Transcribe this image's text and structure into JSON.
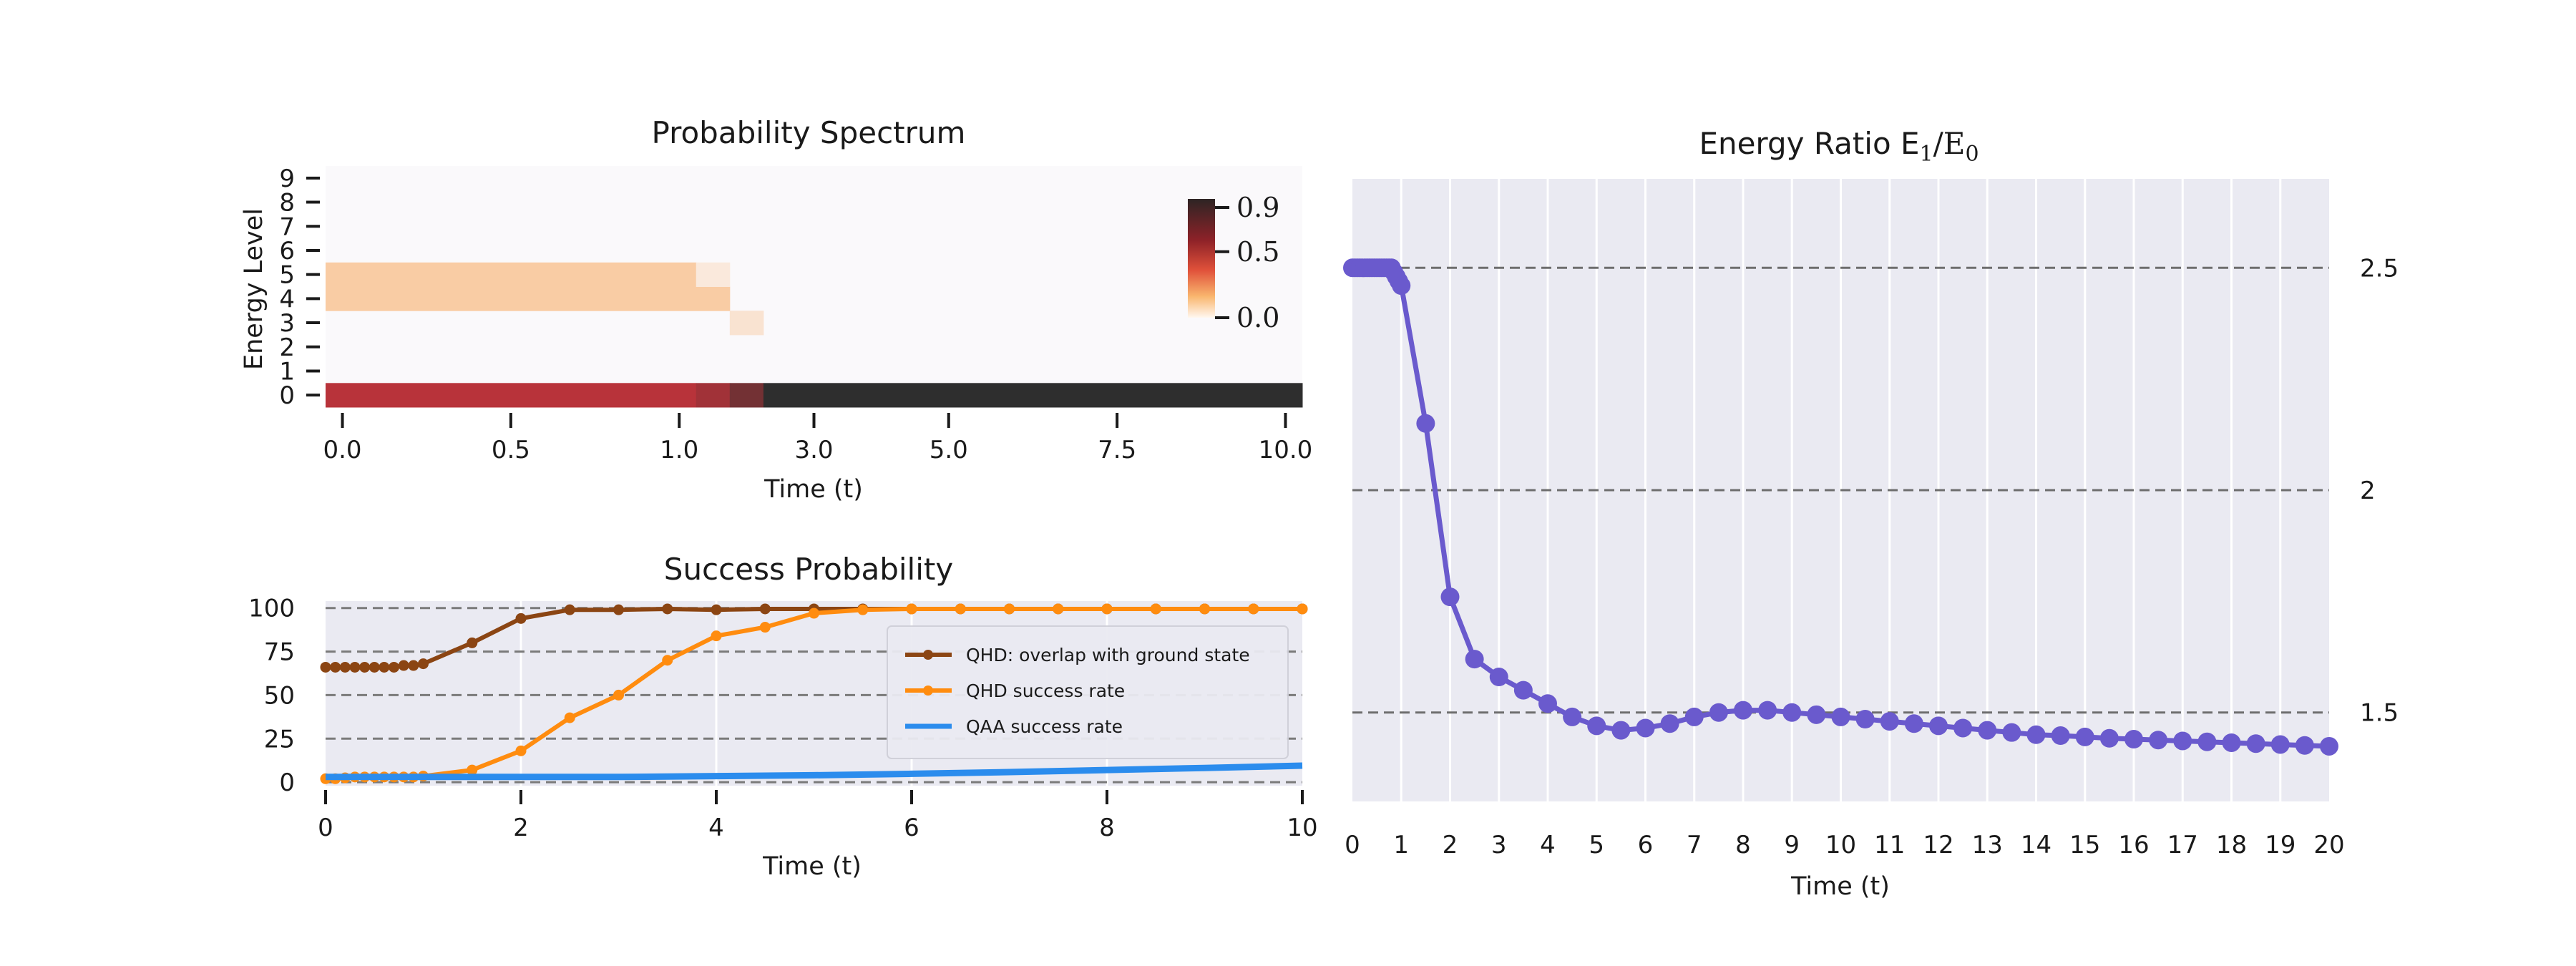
{
  "chart_data": [
    {
      "id": "spectrum",
      "type": "heatmap",
      "title": "Probability Spectrum",
      "xlabel": "Time (t)",
      "ylabel": "Energy Level",
      "x_tick_labels": [
        "0.0",
        "0.5",
        "1.0",
        "3.0",
        "5.0",
        "7.5",
        "10.0"
      ],
      "y_tick_labels": [
        "0",
        "1",
        "2",
        "3",
        "4",
        "5",
        "6",
        "7",
        "8",
        "9"
      ],
      "colorbar": {
        "ticks": [
          "0.0",
          "0.5",
          "0.9"
        ],
        "min": 0.0,
        "max": 0.9,
        "colors": [
          "#faf8f8",
          "#f7a050",
          "#b8333a",
          "#2e2e2e"
        ]
      },
      "columns": 29,
      "cells": [
        {
          "level": 0,
          "col_start": 0,
          "col_end": 11,
          "value": 0.6
        },
        {
          "level": 0,
          "col_start": 11,
          "col_end": 12,
          "value": 0.65
        },
        {
          "level": 0,
          "col_start": 12,
          "col_end": 13,
          "value": 0.75
        },
        {
          "level": 0,
          "col_start": 13,
          "col_end": 29,
          "value": 0.9
        },
        {
          "level": 4,
          "col_start": 0,
          "col_end": 12,
          "value": 0.15
        },
        {
          "level": 5,
          "col_start": 0,
          "col_end": 11,
          "value": 0.15
        },
        {
          "level": 5,
          "col_start": 11,
          "col_end": 12,
          "value": 0.05
        },
        {
          "level": 3,
          "col_start": 12,
          "col_end": 13,
          "value": 0.07
        }
      ]
    },
    {
      "id": "success",
      "type": "line",
      "title": "Success Probability",
      "xlabel": "Time (t)",
      "ylabel": "",
      "xlim": [
        0,
        10
      ],
      "ylim": [
        -2,
        104
      ],
      "x_ticks": [
        0,
        2,
        4,
        6,
        8,
        10
      ],
      "y_ticks": [
        0,
        25,
        50,
        75,
        100
      ],
      "legend_position": "right",
      "series": [
        {
          "name": "QHD: overlap with ground state",
          "color": "#8b4513",
          "x": [
            0,
            0.1,
            0.2,
            0.3,
            0.4,
            0.5,
            0.6,
            0.7,
            0.8,
            0.9,
            1.0,
            1.5,
            2.0,
            2.5,
            3.0,
            3.5,
            4.0,
            4.5,
            5.0,
            5.5,
            6.0,
            6.5,
            7.0,
            7.5,
            8.0,
            8.5,
            9.0,
            9.5,
            10.0
          ],
          "y": [
            66,
            66,
            66,
            66,
            66,
            66,
            66,
            66,
            67,
            67,
            68,
            80,
            94,
            99,
            99,
            99.5,
            99,
            99.5,
            99.5,
            99.5,
            99.5,
            99.5,
            99.5,
            99.5,
            99.5,
            99.5,
            99.5,
            99.5,
            99.5
          ]
        },
        {
          "name": "QHD success rate",
          "color": "#ff8c0f",
          "x": [
            0,
            0.1,
            0.2,
            0.3,
            0.4,
            0.5,
            0.6,
            0.7,
            0.8,
            0.9,
            1.0,
            1.5,
            2.0,
            2.5,
            3.0,
            3.5,
            4.0,
            4.5,
            5.0,
            5.5,
            6.0,
            6.5,
            7.0,
            7.5,
            8.0,
            8.5,
            9.0,
            9.5,
            10.0
          ],
          "y": [
            2,
            2,
            2.5,
            3,
            3,
            3,
            3,
            3,
            3,
            3,
            3.5,
            7,
            18,
            37,
            50,
            70,
            84,
            89,
            97,
            99,
            99.5,
            99.5,
            99.5,
            99.5,
            99.5,
            99.5,
            99.5,
            99.5,
            99.5
          ]
        },
        {
          "name": "QAA success rate",
          "color": "#2b8ced",
          "x": [
            0,
            1,
            2,
            3,
            4,
            5,
            6,
            7,
            8,
            9,
            10
          ],
          "y": [
            3,
            3,
            3,
            3,
            3.5,
            4,
            4.8,
            5.8,
            7,
            8.2,
            9.5
          ]
        }
      ]
    },
    {
      "id": "ratio",
      "type": "line",
      "title": "Energy Ratio E",
      "xlabel": "Time (t)",
      "ylabel": "",
      "xlim": [
        0,
        20
      ],
      "ylim": [
        1.3,
        2.7
      ],
      "x_ticks": [
        0,
        1,
        2,
        3,
        4,
        5,
        6,
        7,
        8,
        9,
        10,
        11,
        12,
        13,
        14,
        15,
        16,
        17,
        18,
        19,
        20
      ],
      "y_ticks": [
        1.5,
        2,
        2.5
      ],
      "y_tick_labels": [
        "1.5",
        "2",
        "2.5"
      ],
      "series": [
        {
          "color": "#6a5acd",
          "x": [
            0,
            0.05,
            0.1,
            0.15,
            0.2,
            0.25,
            0.3,
            0.35,
            0.4,
            0.45,
            0.5,
            0.55,
            0.6,
            0.65,
            0.7,
            0.75,
            0.8,
            0.85,
            0.9,
            0.95,
            1.0,
            1.5,
            2.0,
            2.5,
            3.0,
            3.5,
            4.0,
            4.5,
            5.0,
            5.5,
            6.0,
            6.5,
            7.0,
            7.5,
            8.0,
            8.5,
            9.0,
            9.5,
            10.0,
            10.5,
            11.0,
            11.5,
            12.0,
            12.5,
            13.0,
            13.5,
            14.0,
            14.5,
            15.0,
            15.5,
            16.0,
            16.5,
            17.0,
            17.5,
            18.0,
            18.5,
            19.0,
            19.5,
            20.0
          ],
          "y": [
            2.5,
            2.5,
            2.5,
            2.5,
            2.5,
            2.5,
            2.5,
            2.5,
            2.5,
            2.5,
            2.5,
            2.5,
            2.5,
            2.5,
            2.5,
            2.5,
            2.5,
            2.49,
            2.48,
            2.47,
            2.46,
            2.15,
            1.76,
            1.62,
            1.58,
            1.55,
            1.52,
            1.49,
            1.47,
            1.46,
            1.465,
            1.475,
            1.49,
            1.5,
            1.505,
            1.505,
            1.5,
            1.495,
            1.49,
            1.485,
            1.48,
            1.475,
            1.47,
            1.465,
            1.46,
            1.455,
            1.45,
            1.448,
            1.445,
            1.442,
            1.44,
            1.438,
            1.436,
            1.434,
            1.432,
            1.43,
            1.428,
            1.426,
            1.424
          ]
        }
      ]
    }
  ]
}
